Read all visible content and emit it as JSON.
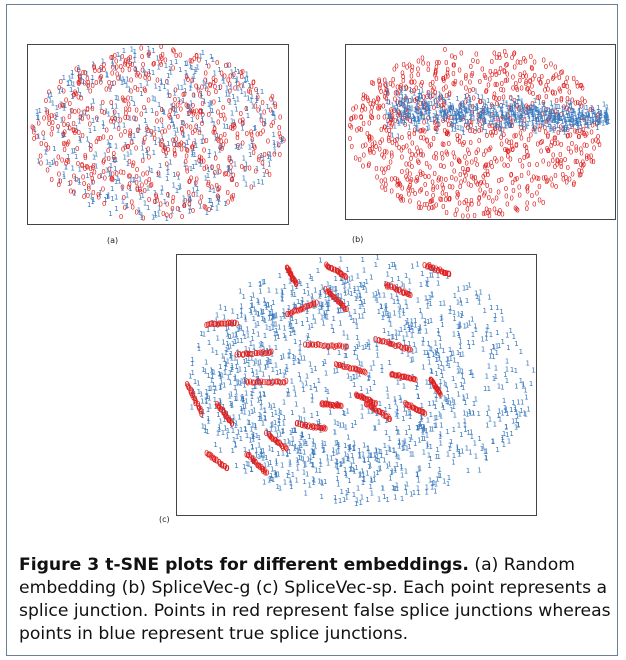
{
  "figure": {
    "caption_title": "Figure 3 t-SNE plots for different embeddings.",
    "caption_text": "(a) Random embedding (b) SpliceVec-g (c) SpliceVec-sp. Each point represents a splice junction. Points in red represent false splice junctions whereas points in blue represent true splice junctions."
  },
  "colors": {
    "false_class": "#e02020",
    "true_class": "#3a7abf",
    "frame": "#6b7f96"
  },
  "chart_data": [
    {
      "type": "scatter",
      "panel_label": "(a)",
      "title": "",
      "xlabel": "",
      "ylabel": "",
      "grid": false,
      "series": [
        {
          "name": "0",
          "marker": "0",
          "color": "#e02020"
        },
        {
          "name": "1",
          "marker": "1",
          "color": "#3a7abf"
        }
      ],
      "note": "classes fully intermixed in one large ellipse"
    },
    {
      "type": "scatter",
      "panel_label": "(b)",
      "title": "",
      "xlabel": "",
      "ylabel": "",
      "grid": false,
      "series": [
        {
          "name": "0",
          "marker": "0",
          "color": "#e02020"
        },
        {
          "name": "1",
          "marker": "1",
          "color": "#3a7abf"
        }
      ],
      "note": "blue core band surrounded by a red halo"
    },
    {
      "type": "scatter",
      "panel_label": "(c)",
      "title": "",
      "xlabel": "",
      "ylabel": "",
      "grid": false,
      "series": [
        {
          "name": "0",
          "marker": "0",
          "color": "#e02020"
        },
        {
          "name": "1",
          "marker": "1",
          "color": "#3a7abf"
        }
      ],
      "note": "red points form short separated strands inside a blue ring"
    }
  ]
}
